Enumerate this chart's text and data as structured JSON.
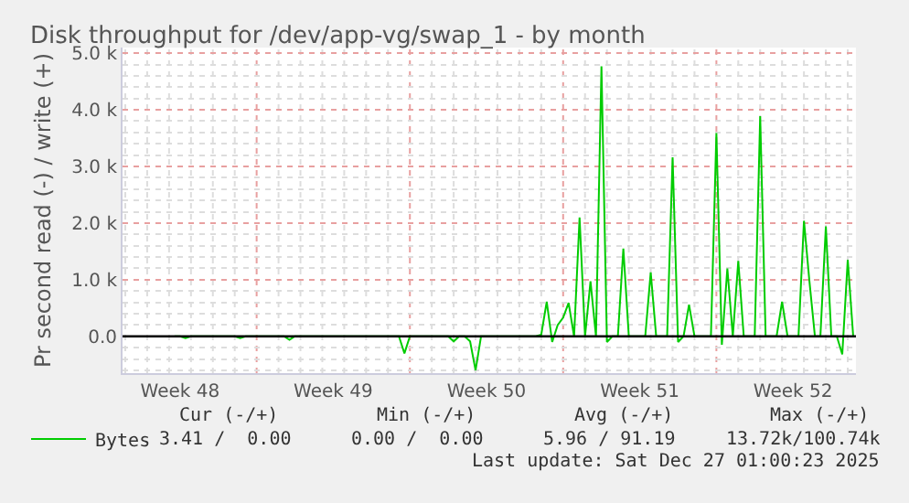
{
  "chart_data": {
    "type": "line",
    "title": "Disk throughput for /dev/app-vg/swap_1 - by month",
    "ylabel": "Pr second read (-) / write (+)",
    "categories": [
      null,
      null,
      null,
      null,
      null,
      null,
      null,
      null,
      null,
      null,
      "Week 48",
      null,
      null,
      null,
      null,
      null,
      null,
      null,
      null,
      null,
      null,
      null,
      null,
      null,
      null,
      null,
      null,
      null,
      null,
      null,
      null,
      null,
      null,
      null,
      null,
      null,
      null,
      null,
      "Week 49",
      null,
      null,
      null,
      null,
      null,
      null,
      null,
      null,
      null,
      null,
      null,
      null,
      null,
      null,
      null,
      null,
      null,
      null,
      null,
      null,
      null,
      null,
      null,
      null,
      null,
      null,
      null,
      "Week 50",
      null,
      null,
      null,
      null,
      null,
      null,
      null,
      null,
      null,
      null,
      null,
      null,
      null,
      null,
      null,
      null,
      null,
      null,
      null,
      null,
      null,
      null,
      null,
      null,
      null,
      null,
      null,
      "Week 51",
      null,
      null,
      null,
      null,
      null,
      null,
      null,
      null,
      null,
      null,
      null,
      null,
      null,
      null,
      null,
      null,
      null,
      null,
      null,
      null,
      null,
      null,
      null,
      null,
      null,
      null,
      null,
      "Week 52",
      null,
      null,
      null,
      null,
      null,
      null,
      null,
      null,
      null,
      null,
      null
    ],
    "series": [
      {
        "name": "Bytes",
        "color": "#00cc00",
        "values": [
          null,
          null,
          null,
          null,
          null,
          null,
          null,
          null,
          null,
          0,
          0,
          -30,
          0,
          0,
          0,
          0,
          0,
          0,
          0,
          0,
          0,
          -30,
          0,
          0,
          0,
          0,
          0,
          0,
          0,
          0,
          -60,
          0,
          0,
          0,
          0,
          0,
          0,
          0,
          0,
          0,
          0,
          0,
          0,
          0,
          0,
          0,
          0,
          0,
          0,
          0,
          0,
          -300,
          0,
          0,
          0,
          0,
          0,
          0,
          0,
          0,
          -90,
          0,
          0,
          -90,
          -600,
          0,
          0,
          0,
          0,
          0,
          0,
          0,
          0,
          0,
          0,
          0,
          30,
          610,
          -100,
          200,
          330,
          590,
          0,
          2100,
          0,
          970,
          0,
          4770,
          -100,
          0,
          0,
          1550,
          0,
          0,
          0,
          0,
          1130,
          0,
          0,
          0,
          3160,
          -100,
          0,
          560,
          0,
          0,
          0,
          0,
          3590,
          -150,
          1200,
          0,
          1330,
          0,
          0,
          0,
          3890,
          0,
          0,
          0,
          610,
          0,
          0,
          0,
          2040,
          970,
          0,
          0,
          1940,
          0,
          0,
          -320,
          1350,
          0
        ]
      }
    ],
    "ylim": [
      -650,
      5100
    ],
    "yticks": [
      {
        "value": 0,
        "label": "0.0"
      },
      {
        "value": 1000,
        "label": "1.0 k"
      },
      {
        "value": 2000,
        "label": "2.0 k"
      },
      {
        "value": 3000,
        "label": "3.0 k"
      },
      {
        "value": 4000,
        "label": "4.0 k"
      },
      {
        "value": 5000,
        "label": "5.0 k"
      }
    ],
    "ref_lines": [
      {
        "axis": "y",
        "value": 0,
        "color": "#000000"
      }
    ],
    "grid": true,
    "legend": "bottom left",
    "marker": "none",
    "line_style": "solid",
    "annotations": [
      "Cur (-/+)",
      "Min (-/+)",
      "Avg (-/+)",
      "Max (-/+)",
      "3.41 /  0.00",
      "0.00 /  0.00",
      "5.96 / 91.19",
      "13.72k/100.74k",
      "Last update: Sat Dec 27 01:00:23 2025"
    ]
  }
}
